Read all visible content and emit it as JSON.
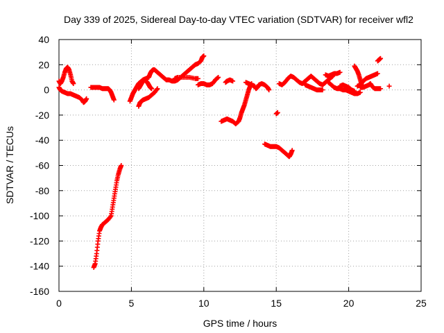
{
  "chart_data": {
    "type": "scatter",
    "title": "Day 339 of 2025, Sidereal Day-to-day VTEC variation (SDTVAR) for receiver wfl2",
    "xlabel": "GPS time / hours",
    "ylabel": "SDTVAR / TECUs",
    "xlim": [
      0,
      25
    ],
    "ylim": [
      -160,
      40
    ],
    "x_ticks": [
      0,
      5,
      10,
      15,
      20,
      25
    ],
    "y_ticks": [
      40,
      20,
      0,
      -20,
      -40,
      -60,
      -80,
      -100,
      -120,
      -140,
      -160
    ],
    "grid": true,
    "marker": "plus",
    "series": [
      {
        "color": "#ff0000",
        "segments": [
          [
            [
              0.0,
              7
            ],
            [
              0.1,
              5
            ],
            [
              0.2,
              7
            ],
            [
              0.3,
              10
            ],
            [
              0.4,
              14
            ],
            [
              0.5,
              17
            ],
            [
              0.6,
              18
            ],
            [
              0.7,
              16
            ],
            [
              0.8,
              12
            ],
            [
              0.9,
              7
            ],
            [
              1.0,
              5
            ]
          ],
          [
            [
              0.0,
              2
            ],
            [
              0.1,
              0
            ],
            [
              0.2,
              -1
            ],
            [
              0.4,
              -2
            ],
            [
              0.6,
              -3
            ],
            [
              0.8,
              -3
            ],
            [
              1.0,
              -4
            ],
            [
              1.2,
              -5
            ],
            [
              1.4,
              -6
            ],
            [
              1.6,
              -8
            ],
            [
              1.7,
              -10
            ],
            [
              1.8,
              -9
            ],
            [
              1.9,
              -7
            ]
          ],
          [
            [
              2.2,
              2
            ],
            [
              2.4,
              2
            ],
            [
              2.6,
              2
            ],
            [
              2.8,
              2
            ],
            [
              3.0,
              1
            ],
            [
              3.2,
              1
            ],
            [
              3.4,
              1
            ],
            [
              3.5,
              0
            ],
            [
              3.6,
              -2
            ],
            [
              3.7,
              -5
            ],
            [
              3.8,
              -8
            ]
          ],
          [
            [
              2.4,
              -141
            ],
            [
              2.5,
              -138
            ],
            [
              2.6,
              -130
            ],
            [
              2.7,
              -120
            ],
            [
              2.8,
              -112
            ],
            [
              2.9,
              -109
            ],
            [
              3.0,
              -107
            ],
            [
              3.2,
              -105
            ],
            [
              3.4,
              -103
            ],
            [
              3.6,
              -100
            ],
            [
              3.7,
              -93
            ],
            [
              3.8,
              -86
            ],
            [
              3.9,
              -79
            ],
            [
              4.0,
              -72
            ],
            [
              4.1,
              -67
            ],
            [
              4.2,
              -63
            ],
            [
              4.3,
              -60
            ]
          ],
          [
            [
              4.9,
              -9
            ],
            [
              5.0,
              -6
            ],
            [
              5.1,
              -3
            ],
            [
              5.2,
              -1
            ],
            [
              5.3,
              1
            ],
            [
              5.4,
              3
            ],
            [
              5.5,
              5
            ],
            [
              5.6,
              6
            ],
            [
              5.8,
              8
            ],
            [
              6.0,
              9
            ],
            [
              6.2,
              10
            ],
            [
              6.3,
              13
            ],
            [
              6.4,
              15
            ],
            [
              6.5,
              16
            ],
            [
              6.6,
              16
            ]
          ],
          [
            [
              5.5,
              -13
            ],
            [
              5.6,
              -10
            ],
            [
              5.7,
              -9
            ],
            [
              5.8,
              -8
            ],
            [
              6.0,
              -7
            ],
            [
              6.2,
              -6
            ],
            [
              6.4,
              -4
            ],
            [
              6.6,
              -2
            ],
            [
              6.8,
              1
            ]
          ],
          [
            [
              5.5,
              1
            ],
            [
              5.6,
              3
            ],
            [
              5.7,
              5
            ],
            [
              5.8,
              7
            ],
            [
              5.9,
              8
            ],
            [
              6.0,
              7
            ],
            [
              6.1,
              6
            ],
            [
              6.2,
              4
            ],
            [
              6.3,
              2
            ],
            [
              6.4,
              1
            ]
          ],
          [
            [
              6.6,
              16
            ],
            [
              6.8,
              14
            ],
            [
              7.0,
              12
            ],
            [
              7.2,
              10
            ],
            [
              7.4,
              8
            ],
            [
              7.6,
              8
            ],
            [
              7.8,
              7
            ],
            [
              8.0,
              7
            ],
            [
              8.2,
              8
            ],
            [
              8.4,
              10
            ],
            [
              8.6,
              12
            ],
            [
              8.8,
              14
            ],
            [
              9.0,
              16
            ],
            [
              9.2,
              18
            ],
            [
              9.4,
              20
            ],
            [
              9.6,
              21
            ],
            [
              9.8,
              23
            ],
            [
              9.9,
              26
            ],
            [
              10.0,
              27
            ]
          ],
          [
            [
              8.0,
              9
            ],
            [
              8.2,
              10
            ],
            [
              8.6,
              10
            ],
            [
              9.0,
              10
            ],
            [
              9.4,
              9
            ],
            [
              9.6,
              9
            ]
          ],
          [
            [
              9.6,
              4
            ],
            [
              9.8,
              5
            ],
            [
              10.0,
              5
            ],
            [
              10.2,
              4
            ],
            [
              10.4,
              4
            ],
            [
              10.6,
              5
            ],
            [
              10.8,
              8
            ],
            [
              11.0,
              10
            ]
          ],
          [
            [
              11.5,
              6
            ],
            [
              11.6,
              7
            ],
            [
              11.8,
              8
            ],
            [
              12.0,
              7
            ]
          ],
          [
            [
              11.2,
              -25
            ],
            [
              11.4,
              -24
            ],
            [
              11.6,
              -23
            ],
            [
              11.8,
              -24
            ],
            [
              12.0,
              -25
            ],
            [
              12.2,
              -27
            ],
            [
              12.4,
              -25
            ],
            [
              12.5,
              -22
            ],
            [
              12.6,
              -18
            ],
            [
              12.7,
              -15
            ],
            [
              12.8,
              -12
            ],
            [
              12.9,
              -8
            ],
            [
              13.0,
              -4
            ],
            [
              13.1,
              0
            ],
            [
              13.2,
              3
            ],
            [
              13.3,
              5
            ]
          ],
          [
            [
              12.9,
              6
            ],
            [
              13.1,
              5
            ],
            [
              13.3,
              4
            ],
            [
              13.5,
              3
            ],
            [
              13.6,
              1
            ],
            [
              13.7,
              2
            ],
            [
              13.8,
              4
            ],
            [
              14.0,
              5
            ],
            [
              14.2,
              4
            ],
            [
              14.4,
              2
            ],
            [
              14.5,
              0
            ]
          ],
          [
            [
              14.2,
              -43
            ],
            [
              14.4,
              -44
            ],
            [
              14.6,
              -45
            ],
            [
              14.8,
              -45
            ],
            [
              15.0,
              -45
            ],
            [
              15.2,
              -46
            ],
            [
              15.4,
              -48
            ],
            [
              15.6,
              -50
            ],
            [
              15.8,
              -52
            ],
            [
              15.9,
              -53
            ],
            [
              16.0,
              -51
            ],
            [
              16.1,
              -48
            ]
          ],
          [
            [
              15.0,
              -19
            ],
            [
              15.1,
              -18
            ]
          ],
          [
            [
              15.2,
              5
            ],
            [
              15.4,
              4
            ],
            [
              15.6,
              6
            ],
            [
              15.8,
              9
            ],
            [
              16.0,
              11
            ],
            [
              16.2,
              10
            ],
            [
              16.4,
              8
            ],
            [
              16.6,
              6
            ],
            [
              16.8,
              5
            ],
            [
              17.0,
              7
            ],
            [
              17.2,
              9
            ],
            [
              17.4,
              11
            ],
            [
              17.6,
              9
            ],
            [
              17.8,
              7
            ],
            [
              18.0,
              5
            ],
            [
              18.2,
              4
            ],
            [
              18.4,
              6
            ],
            [
              18.6,
              8
            ],
            [
              18.8,
              10
            ],
            [
              18.9,
              11
            ]
          ],
          [
            [
              17.0,
              4
            ],
            [
              17.2,
              3
            ],
            [
              17.4,
              2
            ],
            [
              17.6,
              1
            ],
            [
              17.8,
              0
            ],
            [
              18.0,
              0
            ],
            [
              18.2,
              0
            ]
          ],
          [
            [
              18.4,
              12
            ],
            [
              18.6,
              11
            ],
            [
              18.8,
              12
            ],
            [
              19.0,
              13
            ],
            [
              19.2,
              13
            ],
            [
              19.4,
              14
            ]
          ],
          [
            [
              18.6,
              6
            ],
            [
              18.8,
              4
            ],
            [
              19.0,
              2
            ],
            [
              19.2,
              1
            ],
            [
              19.4,
              1
            ],
            [
              19.6,
              0
            ],
            [
              19.8,
              0
            ],
            [
              20.0,
              -1
            ],
            [
              20.2,
              -2
            ],
            [
              20.4,
              -3
            ],
            [
              20.6,
              -3
            ],
            [
              20.8,
              -2
            ]
          ],
          [
            [
              19.4,
              3
            ],
            [
              19.6,
              4
            ],
            [
              19.8,
              3
            ],
            [
              20.0,
              2
            ],
            [
              20.2,
              0
            ],
            [
              20.4,
              -1
            ]
          ],
          [
            [
              20.4,
              19
            ],
            [
              20.5,
              17
            ],
            [
              20.6,
              15
            ],
            [
              20.7,
              12
            ],
            [
              20.8,
              8
            ],
            [
              20.9,
              4
            ]
          ],
          [
            [
              20.6,
              3
            ],
            [
              20.8,
              4
            ],
            [
              21.0,
              7
            ],
            [
              21.2,
              9
            ],
            [
              21.4,
              10
            ],
            [
              21.6,
              11
            ],
            [
              21.8,
              12
            ],
            [
              22.0,
              13
            ]
          ],
          [
            [
              20.8,
              2
            ],
            [
              21.0,
              2
            ],
            [
              21.2,
              3
            ],
            [
              21.4,
              4
            ],
            [
              21.5,
              5
            ],
            [
              21.6,
              3
            ],
            [
              21.8,
              1
            ],
            [
              22.0,
              1
            ],
            [
              22.2,
              1
            ]
          ],
          [
            [
              22.0,
              23
            ],
            [
              22.1,
              24
            ],
            [
              22.2,
              25
            ]
          ],
          [
            [
              22.8,
              3
            ]
          ]
        ]
      }
    ]
  }
}
